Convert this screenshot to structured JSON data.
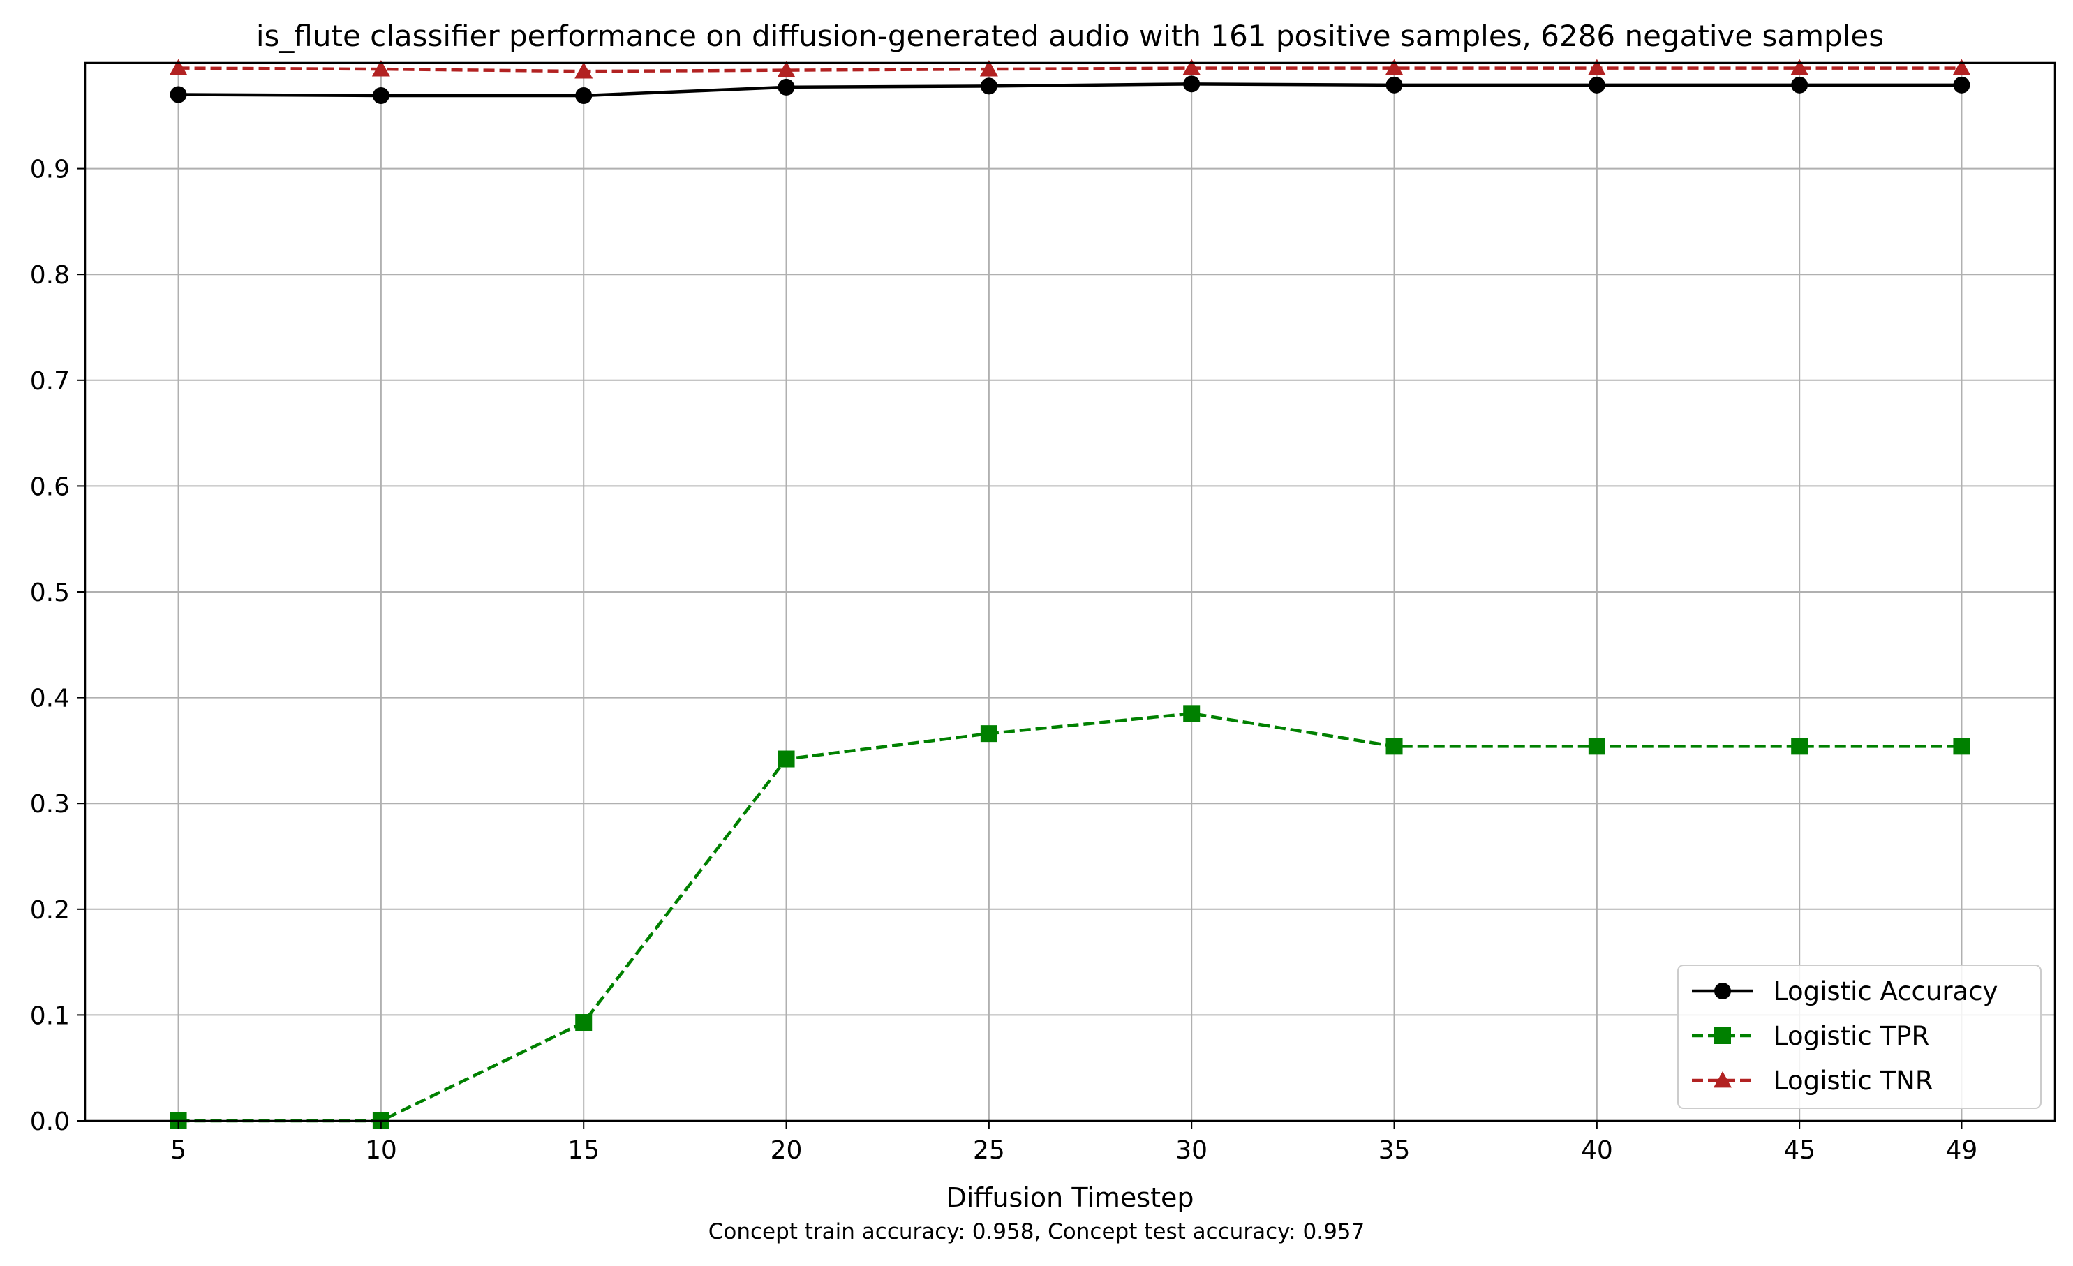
{
  "chart_data": {
    "type": "line",
    "title": "is_flute classifier performance on diffusion-generated audio with 161 positive samples, 6286 negative samples",
    "xlabel": "Diffusion Timestep",
    "ylabel": "",
    "caption": "Concept train accuracy: 0.958, Concept test accuracy: 0.957",
    "x": [
      5,
      10,
      15,
      20,
      25,
      30,
      35,
      40,
      45,
      49
    ],
    "xticks": [
      "5",
      "10",
      "15",
      "20",
      "25",
      "30",
      "35",
      "40",
      "45",
      "49"
    ],
    "yticks": [
      "0.0",
      "0.1",
      "0.2",
      "0.3",
      "0.4",
      "0.5",
      "0.6",
      "0.7",
      "0.8",
      "0.9"
    ],
    "xlim": [
      2.7,
      51.3
    ],
    "ylim": [
      0.0,
      1.0
    ],
    "grid": true,
    "legend_position": "lower right",
    "series": [
      {
        "name": "Logistic Accuracy",
        "color": "#000000",
        "dash": "solid",
        "marker": "circle",
        "values": [
          0.97,
          0.969,
          0.969,
          0.977,
          0.978,
          0.98,
          0.979,
          0.979,
          0.979,
          0.979
        ]
      },
      {
        "name": "Logistic TPR",
        "color": "#008000",
        "dash": "dashed",
        "marker": "square",
        "values": [
          0.0,
          0.0,
          0.093,
          0.342,
          0.366,
          0.385,
          0.354,
          0.354,
          0.354,
          0.354
        ]
      },
      {
        "name": "Logistic TNR",
        "color": "#b22222",
        "dash": "dashed",
        "marker": "triangle",
        "values": [
          0.995,
          0.994,
          0.992,
          0.993,
          0.994,
          0.995,
          0.995,
          0.995,
          0.995,
          0.995
        ]
      }
    ]
  }
}
